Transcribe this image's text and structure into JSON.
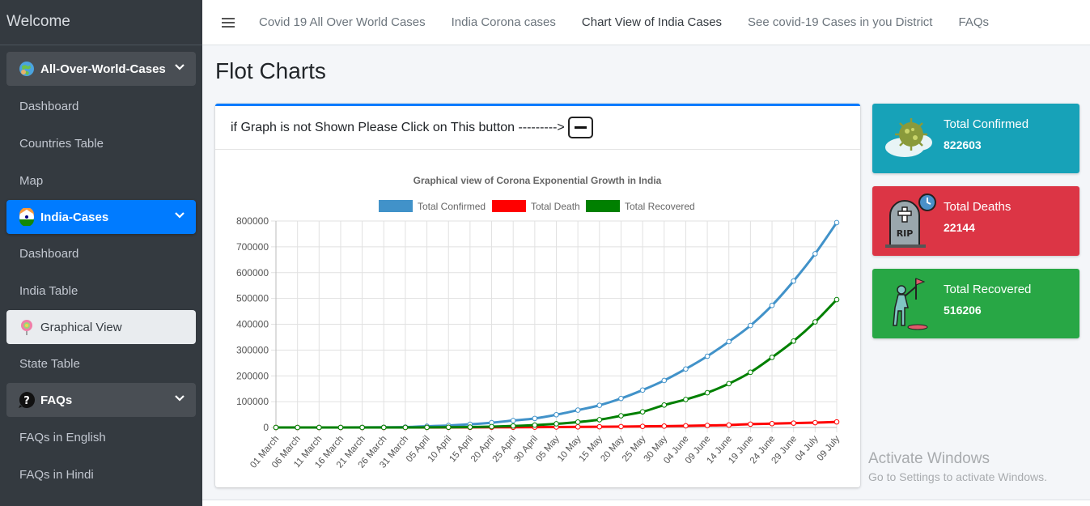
{
  "sidebar": {
    "brand": "Welcome",
    "items": [
      {
        "label": "All-Over-World-Cases"
      },
      {
        "label": "Dashboard"
      },
      {
        "label": "Countries Table"
      },
      {
        "label": "Map"
      },
      {
        "label": "India-Cases"
      },
      {
        "label": "Dashboard"
      },
      {
        "label": "India Table"
      },
      {
        "label": "Graphical View"
      },
      {
        "label": "State Table"
      },
      {
        "label": "FAQs"
      },
      {
        "label": "FAQs in English"
      },
      {
        "label": "FAQs in Hindi"
      }
    ]
  },
  "topnav": {
    "links": [
      {
        "label": "Covid 19 All Over World Cases"
      },
      {
        "label": "India Corona cases"
      },
      {
        "label": "Chart View of India Cases"
      },
      {
        "label": "See covid-19 Cases in you District"
      },
      {
        "label": "FAQs"
      }
    ]
  },
  "page": {
    "title": "Flot Charts"
  },
  "card": {
    "header_text": "if Graph is not Shown Please Click on This button --------->"
  },
  "infoboxes": [
    {
      "label": "Total Confirmed",
      "value": "822603",
      "color": "#17a2b8"
    },
    {
      "label": "Total Deaths",
      "value": "22144",
      "color": "#dc3545"
    },
    {
      "label": "Total Recovered",
      "value": "516206",
      "color": "#28a745"
    }
  ],
  "watermark": {
    "line1": "Activate Windows",
    "line2": "Go to Settings to activate Windows."
  },
  "chart_data": {
    "type": "line",
    "title": "Graphical view of Corona Exponential Growth in India",
    "xlabel": "",
    "ylabel": "",
    "ylim": [
      0,
      800000
    ],
    "yticks": [
      0,
      100000,
      200000,
      300000,
      400000,
      500000,
      600000,
      700000,
      800000
    ],
    "grid": true,
    "legend_position": "top",
    "categories": [
      "01 March",
      "06 March",
      "11 March",
      "16 March",
      "21 March",
      "26 March",
      "31 March",
      "05 April",
      "10 April",
      "15 April",
      "20 April",
      "25 April",
      "30 April",
      "05 May",
      "10 May",
      "15 May",
      "20 May",
      "25 May",
      "30 May",
      "04 June",
      "09 June",
      "14 June",
      "19 June",
      "24 June",
      "29 June",
      "04 July",
      "09 July"
    ],
    "series": [
      {
        "name": "Total Confirmed",
        "color": "#4192c9",
        "values": [
          3,
          31,
          74,
          114,
          330,
          727,
          1397,
          4778,
          7600,
          12400,
          18600,
          26900,
          34900,
          49400,
          67200,
          85900,
          112400,
          144900,
          182100,
          226700,
          276100,
          332700,
          395000,
          473100,
          567500,
          673200,
          794000
        ]
      },
      {
        "name": "Total Death",
        "color": "#ff0000",
        "values": [
          0,
          0,
          1,
          2,
          4,
          17,
          35,
          136,
          249,
          414,
          601,
          825,
          1152,
          1694,
          2212,
          2753,
          3435,
          4172,
          5185,
          6348,
          7745,
          9520,
          12948,
          14894,
          16893,
          18655,
          21604
        ]
      },
      {
        "name": "Total Recovered",
        "color": "#008000",
        "values": [
          0,
          3,
          3,
          13,
          23,
          67,
          123,
          352,
          774,
          1500,
          3260,
          5900,
          9100,
          14200,
          20900,
          30100,
          45300,
          60700,
          86900,
          108500,
          134700,
          169800,
          213800,
          271700,
          334800,
          409100,
          495500
        ]
      }
    ]
  }
}
